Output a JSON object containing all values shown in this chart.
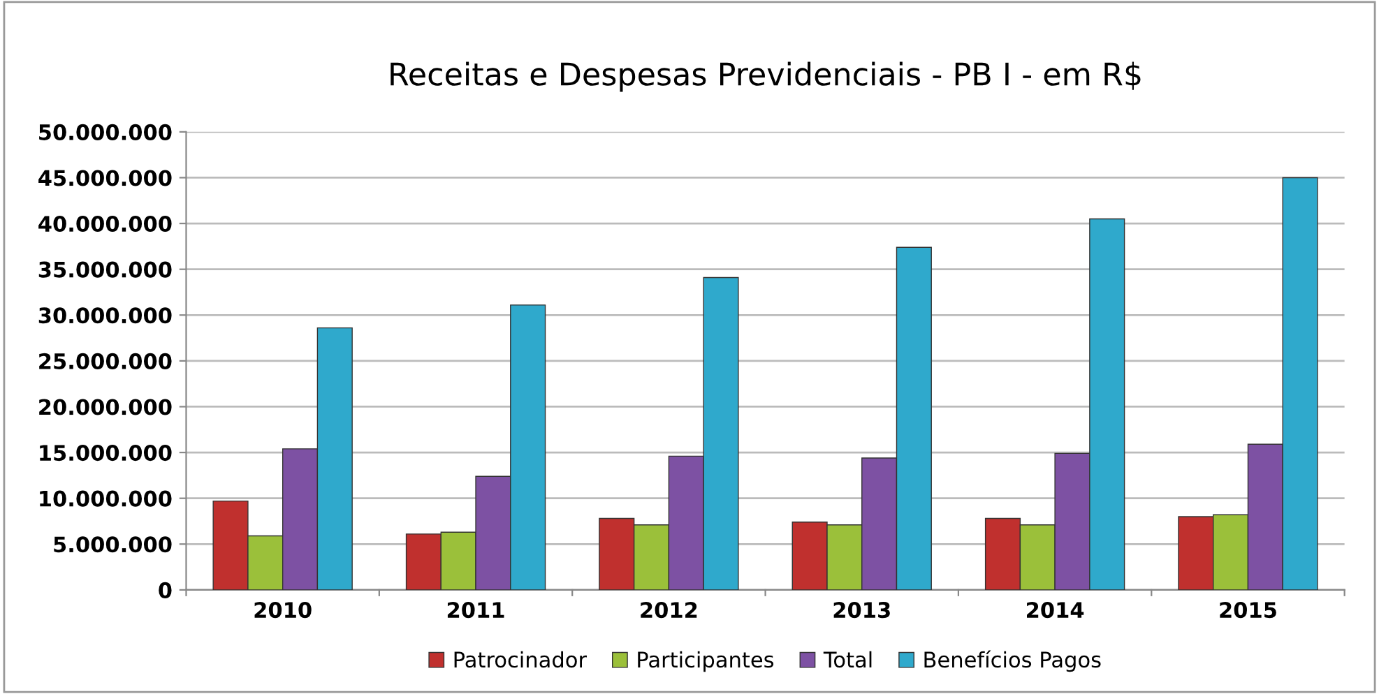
{
  "chart_data": {
    "type": "bar",
    "title": "Receitas e Despesas Previdenciais - PB I - em R$",
    "categories": [
      "2010",
      "2011",
      "2012",
      "2013",
      "2014",
      "2015"
    ],
    "series": [
      {
        "name": "Patrocinador",
        "color": "#c0302e",
        "values": [
          9700000,
          6100000,
          7800000,
          7400000,
          7800000,
          8000000
        ]
      },
      {
        "name": "Participantes",
        "color": "#9bc03a",
        "values": [
          5900000,
          6300000,
          7100000,
          7100000,
          7100000,
          8200000
        ]
      },
      {
        "name": "Total",
        "color": "#7d51a3",
        "values": [
          15400000,
          12400000,
          14600000,
          14400000,
          14900000,
          15900000
        ]
      },
      {
        "name": "Benefícios Pagos",
        "color": "#2fa9cc",
        "values": [
          28600000,
          31100000,
          34100000,
          37400000,
          40500000,
          45000000
        ]
      }
    ],
    "ylim": [
      0,
      50000000
    ],
    "yticks": [
      0,
      {
        "value": 5000000,
        "label": "5.000.000"
      },
      {
        "value": 10000000,
        "label": "10.000.000"
      },
      {
        "value": 15000000,
        "label": "15.000.000"
      },
      {
        "value": 20000000,
        "label": "20.000.000"
      },
      {
        "value": 25000000,
        "label": "25.000.000"
      },
      {
        "value": 30000000,
        "label": "30.000.000"
      },
      {
        "value": 35000000,
        "label": "35.000.000"
      },
      {
        "value": 40000000,
        "label": "40.000.000"
      },
      {
        "value": 45000000,
        "label": "45.000.000"
      },
      {
        "value": 50000000,
        "label": "50.000.000"
      }
    ],
    "grid": "y",
    "legend": "bottom"
  }
}
